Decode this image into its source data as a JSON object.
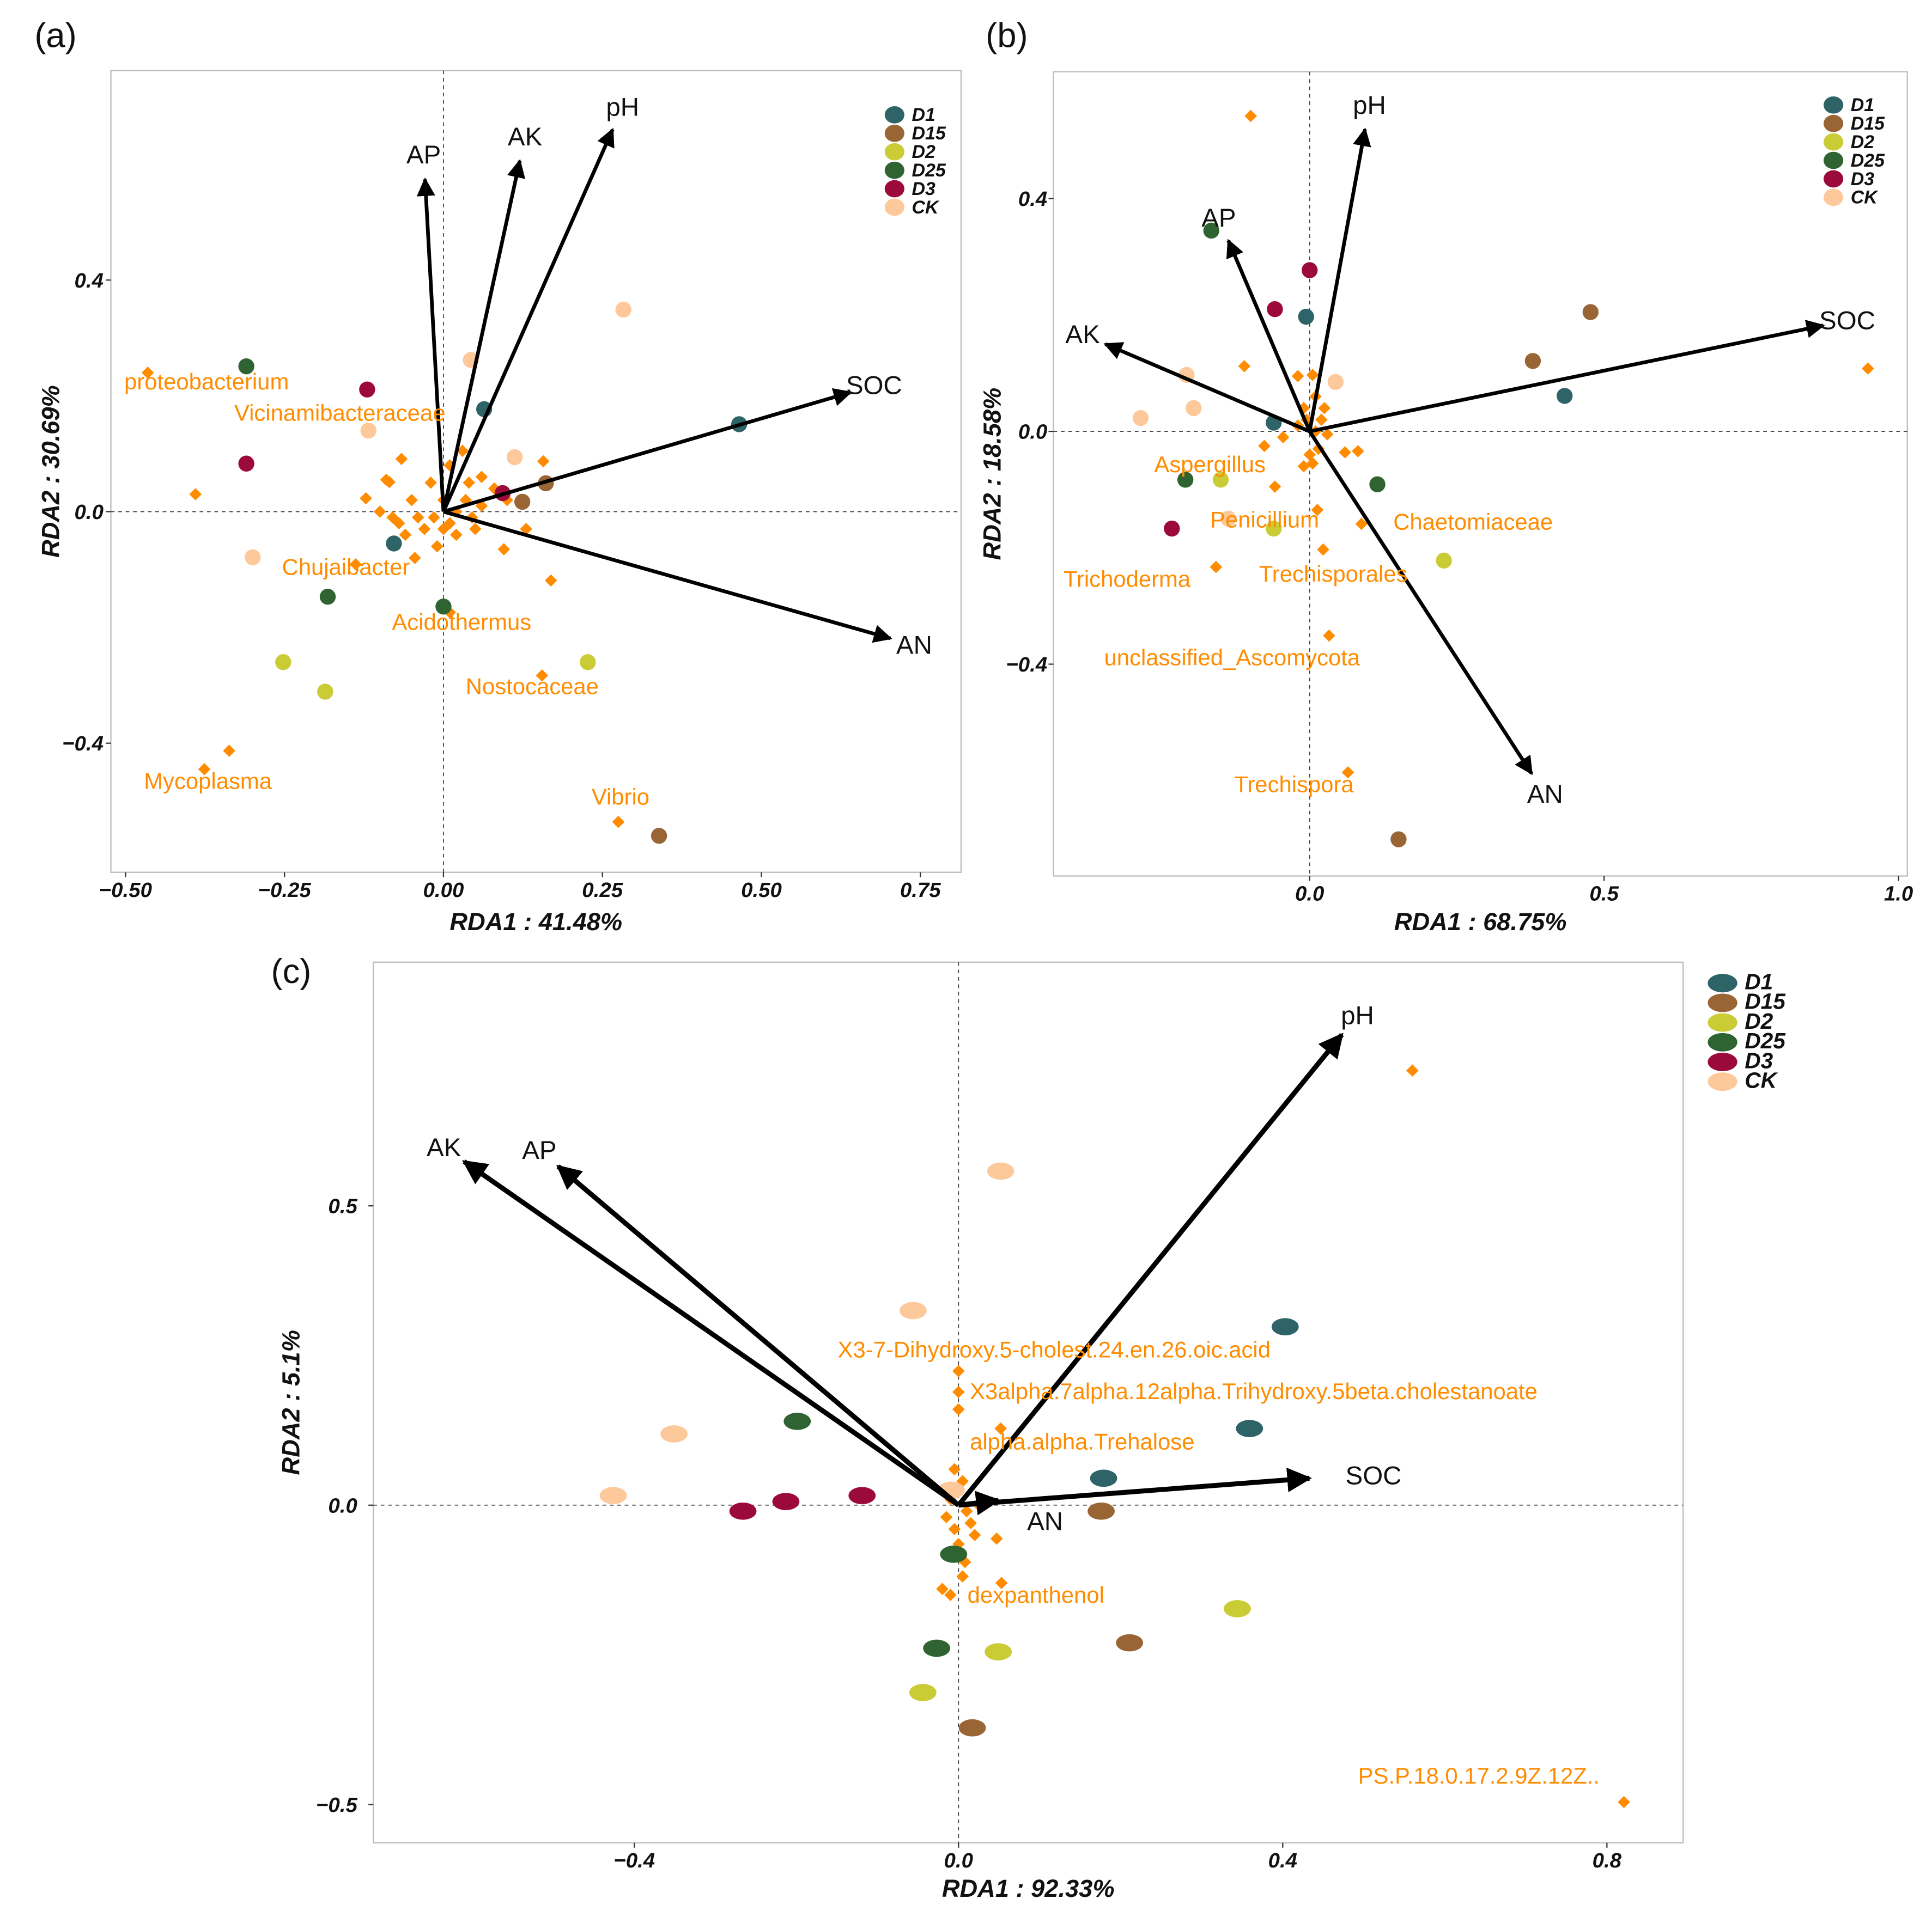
{
  "colors": {
    "D1": "#2e6468",
    "D15": "#9a6535",
    "D2": "#c9cc34",
    "D25": "#2f6331",
    "D3": "#9b0a3b",
    "CK": "#fdc99b",
    "species": "#ff8c00",
    "arrow": "#000000"
  },
  "chart_data": [
    {
      "panel": "(a)",
      "type": "scatter",
      "xlabel": "RDA1 : 41.48%",
      "ylabel": "RDA2 : 30.69%",
      "xlim": [
        -0.523,
        0.814
      ],
      "ylim": [
        -0.623,
        0.762
      ],
      "xticks": [
        {
          "v": -0.5,
          "label": "−0.50"
        },
        {
          "v": -0.25,
          "label": "−0.25"
        },
        {
          "v": 0,
          "label": "0.00"
        },
        {
          "v": 0.25,
          "label": "0.25"
        },
        {
          "v": 0.5,
          "label": "0.50"
        },
        {
          "v": 0.75,
          "label": "0.75"
        }
      ],
      "yticks": [
        {
          "v": 0.4,
          "label": "0.4"
        },
        {
          "v": 0,
          "label": "0.0"
        },
        {
          "v": -0.4,
          "label": "−0.4"
        }
      ],
      "legend": [
        "D1",
        "D15",
        "D2",
        "D25",
        "D3",
        "CK"
      ],
      "arrows": [
        {
          "name": "AP",
          "x": -0.029,
          "y": 0.574
        },
        {
          "name": "AK",
          "x": 0.12,
          "y": 0.606
        },
        {
          "name": "pH",
          "x": 0.266,
          "y": 0.66
        },
        {
          "name": "SOC",
          "x": 0.64,
          "y": 0.206
        },
        {
          "name": "AN",
          "x": 0.703,
          "y": -0.219
        }
      ],
      "samples": [
        {
          "group": "D1",
          "x": 0.064,
          "y": 0.177
        },
        {
          "group": "D1",
          "x": 0.465,
          "y": 0.151
        },
        {
          "group": "D1",
          "x": -0.078,
          "y": -0.055
        },
        {
          "group": "D15",
          "x": 0.161,
          "y": 0.049
        },
        {
          "group": "D15",
          "x": 0.124,
          "y": 0.017
        },
        {
          "group": "D15",
          "x": 0.339,
          "y": -0.56
        },
        {
          "group": "D2",
          "x": -0.252,
          "y": -0.26
        },
        {
          "group": "D2",
          "x": -0.186,
          "y": -0.311
        },
        {
          "group": "D2",
          "x": 0.227,
          "y": -0.26
        },
        {
          "group": "D25",
          "x": -0.31,
          "y": 0.251
        },
        {
          "group": "D25",
          "x": -0.182,
          "y": -0.147
        },
        {
          "group": "D25",
          "x": 0.0,
          "y": -0.164
        },
        {
          "group": "D3",
          "x": -0.12,
          "y": 0.211
        },
        {
          "group": "D3",
          "x": -0.31,
          "y": 0.083
        },
        {
          "group": "D3",
          "x": 0.093,
          "y": 0.032
        },
        {
          "group": "CK",
          "x": 0.283,
          "y": 0.349
        },
        {
          "group": "CK",
          "x": 0.043,
          "y": 0.262
        },
        {
          "group": "CK",
          "x": -0.118,
          "y": 0.14
        },
        {
          "group": "CK",
          "x": 0.112,
          "y": 0.094
        },
        {
          "group": "CK",
          "x": -0.3,
          "y": -0.079
        }
      ],
      "species": [
        [
          -0.465,
          0.24
        ],
        [
          -0.376,
          -0.445
        ],
        [
          -0.337,
          -0.413
        ],
        [
          0.275,
          -0.536
        ],
        [
          0.155,
          -0.283
        ],
        [
          -0.138,
          -0.091
        ],
        [
          0.01,
          -0.174
        ],
        [
          -0.39,
          0.03
        ],
        [
          0.169,
          -0.119
        ],
        [
          -0.066,
          0.091
        ],
        [
          0.157,
          0.087
        ],
        [
          -0.122,
          0.023
        ],
        [
          -0.09,
          0.055
        ],
        [
          -0.085,
          0.051
        ],
        [
          0.03,
          0.105
        ],
        [
          0.08,
          0.04
        ],
        [
          0.1,
          0.02
        ],
        [
          0.13,
          -0.03
        ],
        [
          0.095,
          -0.065
        ],
        [
          -0.06,
          -0.04
        ],
        [
          -0.045,
          -0.08
        ],
        [
          -0.1,
          0.0
        ],
        [
          -0.08,
          -0.01
        ],
        [
          -0.03,
          -0.03
        ],
        [
          -0.01,
          -0.06
        ],
        [
          0.02,
          -0.04
        ],
        [
          0.05,
          -0.03
        ],
        [
          0.06,
          0.01
        ],
        [
          0.04,
          0.05
        ],
        [
          0.01,
          0.08
        ],
        [
          -0.02,
          0.05
        ],
        [
          -0.05,
          0.02
        ],
        [
          0.0,
          0.02
        ],
        [
          0.02,
          0.0
        ],
        [
          -0.015,
          -0.01
        ],
        [
          0.035,
          0.02
        ],
        [
          -0.04,
          -0.01
        ],
        [
          0.01,
          -0.02
        ],
        [
          0.06,
          0.06
        ],
        [
          -0.07,
          -0.02
        ],
        [
          0.045,
          -0.01
        ],
        [
          0.0,
          -0.03
        ]
      ],
      "labels": [
        {
          "text": "proteobacterium",
          "x": -0.502,
          "y": 0.211
        },
        {
          "text": "Vicinamibacteraceae",
          "x": -0.329,
          "y": 0.157
        },
        {
          "text": "Chujaibacter",
          "x": -0.254,
          "y": -0.109
        },
        {
          "text": "Acidothermus",
          "x": -0.081,
          "y": -0.204
        },
        {
          "text": "Nostocaceae",
          "x": 0.035,
          "y": -0.315
        },
        {
          "text": "Mycoplasma",
          "x": -0.471,
          "y": -0.479
        },
        {
          "text": "Vibrio",
          "x": 0.233,
          "y": -0.506
        }
      ]
    },
    {
      "panel": "(b)",
      "type": "scatter",
      "xlabel": "RDA1 : 68.75%",
      "ylabel": "RDA2 : 18.58%",
      "xlim": [
        -0.435,
        1.015
      ],
      "ylim": [
        -0.764,
        0.618
      ],
      "xticks": [
        {
          "v": 0,
          "label": "0.0"
        },
        {
          "v": 0.5,
          "label": "0.5"
        },
        {
          "v": 1.0,
          "label": "1.0"
        }
      ],
      "yticks": [
        {
          "v": 0.4,
          "label": "0.4"
        },
        {
          "v": 0,
          "label": "0.0"
        },
        {
          "v": -0.4,
          "label": "−0.4"
        }
      ],
      "legend": [
        "D1",
        "D15",
        "D2",
        "D25",
        "D3",
        "CK"
      ],
      "arrows": [
        {
          "name": "pH",
          "x": 0.094,
          "y": 0.519
        },
        {
          "name": "AP",
          "x": -0.138,
          "y": 0.328
        },
        {
          "name": "AK",
          "x": -0.347,
          "y": 0.15
        },
        {
          "name": "SOC",
          "x": 0.872,
          "y": 0.182
        },
        {
          "name": "AN",
          "x": 0.377,
          "y": -0.588
        }
      ],
      "samples": [
        {
          "group": "D1",
          "x": -0.006,
          "y": 0.197
        },
        {
          "group": "D1",
          "x": 0.433,
          "y": 0.061
        },
        {
          "group": "D1",
          "x": -0.061,
          "y": 0.015
        },
        {
          "group": "D15",
          "x": 0.477,
          "y": 0.205
        },
        {
          "group": "D15",
          "x": 0.379,
          "y": 0.121
        },
        {
          "group": "D15",
          "x": 0.151,
          "y": -0.701
        },
        {
          "group": "D2",
          "x": -0.151,
          "y": -0.083
        },
        {
          "group": "D2",
          "x": -0.061,
          "y": -0.167
        },
        {
          "group": "D2",
          "x": 0.228,
          "y": -0.222
        },
        {
          "group": "D25",
          "x": -0.167,
          "y": 0.345
        },
        {
          "group": "D25",
          "x": -0.211,
          "y": -0.083
        },
        {
          "group": "D25",
          "x": 0.115,
          "y": -0.091
        },
        {
          "group": "D3",
          "x": 0.0,
          "y": 0.277
        },
        {
          "group": "D3",
          "x": -0.059,
          "y": 0.21
        },
        {
          "group": "D3",
          "x": -0.234,
          "y": -0.167
        },
        {
          "group": "CK",
          "x": -0.209,
          "y": 0.097
        },
        {
          "group": "CK",
          "x": -0.197,
          "y": 0.04
        },
        {
          "group": "CK",
          "x": -0.287,
          "y": 0.023
        },
        {
          "group": "CK",
          "x": 0.044,
          "y": 0.085
        },
        {
          "group": "CK",
          "x": -0.138,
          "y": -0.15
        }
      ],
      "species": [
        [
          -0.1,
          0.542
        ],
        [
          0.948,
          0.108
        ],
        [
          -0.111,
          0.112
        ],
        [
          0.065,
          -0.586
        ],
        [
          0.033,
          -0.351
        ],
        [
          -0.159,
          -0.233
        ],
        [
          0.023,
          -0.203
        ],
        [
          0.088,
          -0.159
        ],
        [
          0.013,
          -0.135
        ],
        [
          -0.059,
          -0.095
        ],
        [
          -0.077,
          -0.025
        ],
        [
          0.082,
          -0.034
        ],
        [
          0.06,
          -0.036
        ],
        [
          -0.045,
          -0.01
        ],
        [
          -0.02,
          0.095
        ],
        [
          0.005,
          0.097
        ],
        [
          0.01,
          0.06
        ],
        [
          -0.01,
          0.04
        ],
        [
          0.02,
          0.02
        ],
        [
          0.03,
          -0.005
        ],
        [
          0.0,
          -0.04
        ],
        [
          -0.01,
          -0.06
        ],
        [
          0.005,
          -0.055
        ],
        [
          0.015,
          -0.03
        ],
        [
          -0.02,
          0.01
        ],
        [
          0.01,
          0.0
        ],
        [
          -0.005,
          0.02
        ],
        [
          0.025,
          0.04
        ]
      ],
      "labels": [
        {
          "text": "Aspergillus",
          "x": -0.264,
          "y": -0.07
        },
        {
          "text": "Penicillium",
          "x": -0.169,
          "y": -0.165
        },
        {
          "text": "Chaetomiaceae",
          "x": 0.142,
          "y": -0.169
        },
        {
          "text": "Trichoderma",
          "x": -0.418,
          "y": -0.267
        },
        {
          "text": "Trechisporales",
          "x": -0.086,
          "y": -0.258
        },
        {
          "text": "unclassified_Ascomycota",
          "x": -0.349,
          "y": -0.402
        },
        {
          "text": "Trechispora",
          "x": -0.128,
          "y": -0.62
        }
      ]
    },
    {
      "panel": "(c)",
      "type": "scatter",
      "xlabel": "RDA1 : 92.33%",
      "ylabel": "RDA2 : 5.1%",
      "xlim": [
        -0.722,
        0.894
      ],
      "ylim": [
        -0.564,
        0.907
      ],
      "xticks": [
        {
          "v": -0.4,
          "label": "−0.4"
        },
        {
          "v": 0,
          "label": "0.0"
        },
        {
          "v": 0.4,
          "label": "0.4"
        },
        {
          "v": 0.8,
          "label": "0.8"
        }
      ],
      "yticks": [
        {
          "v": 0.5,
          "label": "0.5"
        },
        {
          "v": 0,
          "label": "0.0"
        },
        {
          "v": -0.5,
          "label": "−0.5"
        }
      ],
      "legend": [
        "D1",
        "D15",
        "D2",
        "D25",
        "D3",
        "CK"
      ],
      "arrows": [
        {
          "name": "pH",
          "x": 0.473,
          "y": 0.786
        },
        {
          "name": "AP",
          "x": -0.494,
          "y": 0.566
        },
        {
          "name": "AK",
          "x": -0.61,
          "y": 0.574
        },
        {
          "name": "SOC",
          "x": 0.433,
          "y": 0.045
        },
        {
          "name": "AN",
          "x": 0.049,
          "y": 0.008
        }
      ],
      "samples": [
        {
          "group": "D1",
          "x": 0.403,
          "y": 0.298
        },
        {
          "group": "D1",
          "x": 0.359,
          "y": 0.128
        },
        {
          "group": "D1",
          "x": 0.179,
          "y": 0.045
        },
        {
          "group": "D15",
          "x": 0.176,
          "y": -0.01
        },
        {
          "group": "D15",
          "x": 0.211,
          "y": -0.23
        },
        {
          "group": "D15",
          "x": 0.017,
          "y": -0.372
        },
        {
          "group": "D2",
          "x": 0.344,
          "y": -0.173
        },
        {
          "group": "D2",
          "x": 0.049,
          "y": -0.245
        },
        {
          "group": "D2",
          "x": -0.044,
          "y": -0.313
        },
        {
          "group": "D25",
          "x": -0.199,
          "y": 0.14
        },
        {
          "group": "D25",
          "x": -0.006,
          "y": -0.082
        },
        {
          "group": "D25",
          "x": -0.027,
          "y": -0.239
        },
        {
          "group": "D3",
          "x": -0.266,
          "y": -0.01
        },
        {
          "group": "D3",
          "x": -0.213,
          "y": 0.006
        },
        {
          "group": "D3",
          "x": -0.119,
          "y": 0.016
        },
        {
          "group": "CK",
          "x": 0.052,
          "y": 0.558
        },
        {
          "group": "CK",
          "x": -0.056,
          "y": 0.325
        },
        {
          "group": "CK",
          "x": -0.351,
          "y": 0.119
        },
        {
          "group": "CK",
          "x": -0.426,
          "y": 0.016
        },
        {
          "group": "CK",
          "x": -0.009,
          "y": 0.025
        }
      ],
      "species": [
        [
          0.56,
          0.726
        ],
        [
          0.821,
          -0.496
        ],
        [
          0.0,
          0.224
        ],
        [
          0.0,
          0.189
        ],
        [
          0.052,
          0.128
        ],
        [
          -0.02,
          -0.14
        ],
        [
          0.053,
          -0.13
        ],
        [
          0.047,
          -0.056
        ],
        [
          0.005,
          -0.119
        ],
        [
          0.0,
          0.16
        ],
        [
          -0.005,
          0.06
        ],
        [
          0.005,
          0.04
        ],
        [
          -0.01,
          0.01
        ],
        [
          0.01,
          -0.01
        ],
        [
          0.015,
          -0.03
        ],
        [
          -0.005,
          -0.04
        ],
        [
          0.02,
          -0.05
        ],
        [
          0.0,
          -0.065
        ],
        [
          -0.015,
          -0.02
        ],
        [
          0.025,
          0.0
        ],
        [
          -0.01,
          -0.15
        ],
        [
          0.008,
          -0.095
        ]
      ],
      "labels": [
        {
          "text": "X3-7-Dihydroxy.5-cholest.24.en.26.oic.acid",
          "x": -0.149,
          "y": 0.247
        },
        {
          "text": "X3alpha.7alpha.12alpha.Trihydroxy.5beta.cholestanoate",
          "x": 0.014,
          "y": 0.177
        },
        {
          "text": "alpha.alpha.Trehalose",
          "x": 0.014,
          "y": 0.093
        },
        {
          "text": "dexpanthenol",
          "x": 0.011,
          "y": -0.163
        },
        {
          "text": "PS.P.18.0.17.2.9Z.12Z..",
          "x": 0.493,
          "y": -0.465
        }
      ]
    }
  ]
}
